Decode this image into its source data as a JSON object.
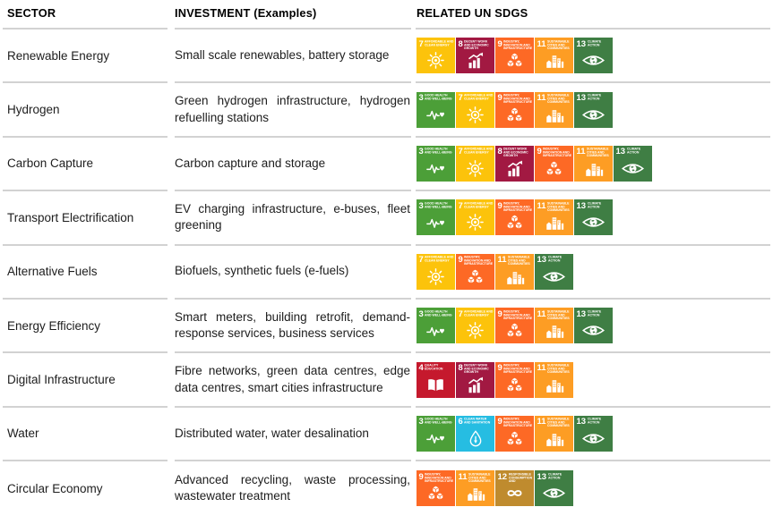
{
  "header": {
    "sector": "SECTOR",
    "investment": "INVESTMENT (Examples)",
    "sdgs": "RELATED UN SDGS"
  },
  "sdg_catalog": {
    "3": {
      "label": "GOOD HEALTH AND WELL-BEING",
      "color": "#4C9F38",
      "icon": "heartbeat"
    },
    "4": {
      "label": "QUALITY EDUCATION",
      "color": "#C5192D",
      "icon": "open-book"
    },
    "6": {
      "label": "CLEAN WATER AND SANITATION",
      "color": "#26BDE2",
      "icon": "water-drop"
    },
    "7": {
      "label": "AFFORDABLE AND CLEAN ENERGY",
      "color": "#FCC30B",
      "icon": "sun"
    },
    "8": {
      "label": "DECENT WORK AND ECONOMIC GROWTH",
      "color": "#A21942",
      "icon": "growth-chart"
    },
    "9": {
      "label": "INDUSTRY, INNOVATION AND INFRASTRUCTURE",
      "color": "#FD6925",
      "icon": "cubes"
    },
    "11": {
      "label": "SUSTAINABLE CITIES AND COMMUNITIES",
      "color": "#FD9D24",
      "icon": "city-buildings"
    },
    "12": {
      "label": "RESPONSIBLE CONSUMPTION AND PRODUCTION",
      "color": "#BF8B2E",
      "icon": "infinity-loop"
    },
    "13": {
      "label": "CLIMATE ACTION",
      "color": "#3F7E44",
      "icon": "eye-globe"
    }
  },
  "rows": [
    {
      "sector": "Renewable Energy",
      "investment": "Small scale renewables, battery storage",
      "sdgs": [
        7,
        8,
        9,
        11,
        13
      ]
    },
    {
      "sector": "Hydrogen",
      "investment": "Green hydrogen infrastructure, hydrogen refuelling stations",
      "sdgs": [
        3,
        7,
        9,
        11,
        13
      ]
    },
    {
      "sector": "Carbon Capture",
      "investment": "Carbon capture and storage",
      "sdgs": [
        3,
        7,
        8,
        9,
        11,
        13
      ]
    },
    {
      "sector": "Transport Electrification",
      "investment": "EV charging infrastructure, e-buses, fleet greening",
      "sdgs": [
        3,
        7,
        9,
        11,
        13
      ]
    },
    {
      "sector": "Alternative Fuels",
      "investment": "Biofuels, synthetic fuels (e-fuels)",
      "sdgs": [
        7,
        9,
        11,
        13
      ]
    },
    {
      "sector": "Energy Efficiency",
      "investment": "Smart meters, building retrofit, demand-response services, business services",
      "sdgs": [
        3,
        7,
        9,
        11,
        13
      ]
    },
    {
      "sector": "Digital Infrastructure",
      "investment": "Fibre networks, green data centres, edge data centres, smart cities infrastructure",
      "sdgs": [
        4,
        8,
        9,
        11
      ]
    },
    {
      "sector": "Water",
      "investment": "Distributed water, water desalination",
      "sdgs": [
        3,
        6,
        9,
        11,
        13
      ]
    },
    {
      "sector": "Circular Economy",
      "investment": "Advanced recycling, waste processing, wastewater treatment",
      "sdgs": [
        9,
        11,
        12,
        13
      ]
    }
  ],
  "styles": {
    "separator_color": "#d2d2d2",
    "header_text_color": "#000000",
    "body_text_color": "#1d1d1d",
    "badge_text_color": "#ffffff"
  }
}
